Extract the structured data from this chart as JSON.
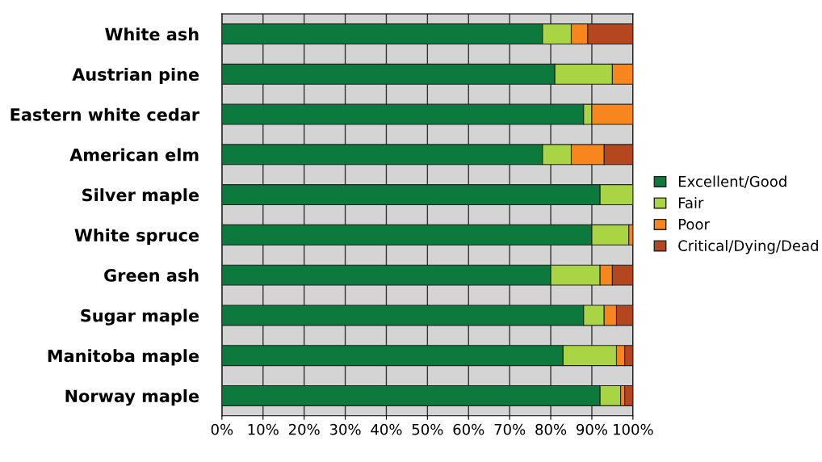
{
  "chart_data": {
    "type": "bar",
    "orientation": "horizontal",
    "stacked": true,
    "categories": [
      "White ash",
      "Austrian pine",
      "Eastern white cedar",
      "American elm",
      "Silver maple",
      "White spruce",
      "Green ash",
      "Sugar maple",
      "Manitoba maple",
      "Norway maple"
    ],
    "series": [
      {
        "name": "Excellent/Good",
        "color": "#0b7a3c",
        "values": [
          78,
          81,
          88,
          78,
          92,
          90,
          80,
          88,
          83,
          92
        ]
      },
      {
        "name": "Fair",
        "color": "#a9d443",
        "values": [
          7,
          14,
          2,
          7,
          8,
          9,
          12,
          5,
          13,
          5
        ]
      },
      {
        "name": "Poor",
        "color": "#f7861e",
        "values": [
          4,
          5,
          10,
          8,
          0,
          1,
          3,
          3,
          2,
          1
        ]
      },
      {
        "name": "Critical/Dying/Dead",
        "color": "#b4471f",
        "values": [
          11,
          0,
          0,
          7,
          0,
          0,
          5,
          4,
          2,
          2
        ]
      }
    ],
    "xlim": [
      0,
      100
    ],
    "xticks": [
      {
        "value": 0,
        "label": "0%"
      },
      {
        "value": 10,
        "label": "10%"
      },
      {
        "value": 20,
        "label": "20%"
      },
      {
        "value": 30,
        "label": "30%"
      },
      {
        "value": 40,
        "label": "40%"
      },
      {
        "value": 50,
        "label": "50%"
      },
      {
        "value": 60,
        "label": "60%"
      },
      {
        "value": 70,
        "label": "70%"
      },
      {
        "value": 80,
        "label": "80%"
      },
      {
        "value": 90,
        "label": "90%"
      },
      {
        "value": 100,
        "label": "100%"
      }
    ],
    "grid": "x",
    "legend": "right"
  }
}
